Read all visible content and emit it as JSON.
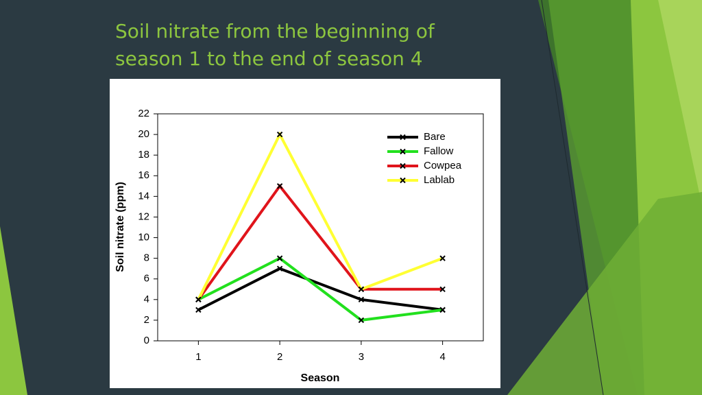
{
  "chart_data": {
    "type": "line",
    "title": "Soil nitrate from the beginning of season 1 to the end of season 4",
    "xlabel": "Season",
    "ylabel": "Soil nitrate (ppm)",
    "x": [
      1,
      2,
      3,
      4
    ],
    "xlim": [
      0.5,
      4.5
    ],
    "xticks": [
      1,
      2,
      3,
      4
    ],
    "ylim": [
      0,
      22
    ],
    "yticks": [
      0,
      2,
      4,
      6,
      8,
      10,
      12,
      14,
      16,
      18,
      20,
      22
    ],
    "legend": "upper right",
    "series": [
      {
        "name": "Bare",
        "color": "#000000",
        "values": [
          3,
          7,
          4,
          3
        ]
      },
      {
        "name": "Fallow",
        "color": "#22e01e",
        "values": [
          4,
          8,
          2,
          3
        ]
      },
      {
        "name": "Cowpea",
        "color": "#e0141b",
        "values": [
          4,
          15,
          5,
          5
        ]
      },
      {
        "name": "Lablab",
        "color": "#ffff33",
        "values": [
          4,
          20,
          5,
          8
        ]
      }
    ]
  }
}
